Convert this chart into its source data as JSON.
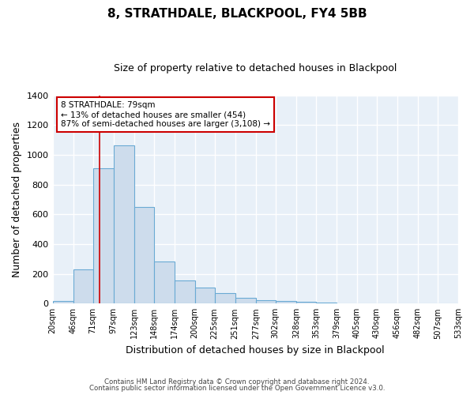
{
  "title": "8, STRATHDALE, BLACKPOOL, FY4 5BB",
  "subtitle": "Size of property relative to detached houses in Blackpool",
  "xlabel": "Distribution of detached houses by size in Blackpool",
  "ylabel": "Number of detached properties",
  "bar_values": [
    15,
    228,
    910,
    1065,
    648,
    285,
    158,
    107,
    70,
    40,
    25,
    18,
    10,
    5,
    2,
    0,
    0,
    0,
    0,
    0
  ],
  "bin_edges": [
    20,
    46,
    71,
    97,
    123,
    148,
    174,
    200,
    225,
    251,
    277,
    302,
    328,
    353,
    379,
    405,
    430,
    456,
    482,
    507,
    533
  ],
  "tick_labels": [
    "20sqm",
    "46sqm",
    "71sqm",
    "97sqm",
    "123sqm",
    "148sqm",
    "174sqm",
    "200sqm",
    "225sqm",
    "251sqm",
    "277sqm",
    "302sqm",
    "328sqm",
    "353sqm",
    "379sqm",
    "405sqm",
    "430sqm",
    "456sqm",
    "482sqm",
    "507sqm",
    "533sqm"
  ],
  "bar_color": "#cddcec",
  "bar_edge_color": "#6aaad4",
  "property_line_x": 79,
  "property_line_color": "#cc0000",
  "ylim": [
    0,
    1400
  ],
  "yticks": [
    0,
    200,
    400,
    600,
    800,
    1000,
    1200,
    1400
  ],
  "annotation_title": "8 STRATHDALE: 79sqm",
  "annotation_line1": "← 13% of detached houses are smaller (454)",
  "annotation_line2": "87% of semi-detached houses are larger (3,108) →",
  "annotation_box_color": "#ffffff",
  "annotation_box_edge": "#cc0000",
  "footer1": "Contains HM Land Registry data © Crown copyright and database right 2024.",
  "footer2": "Contains public sector information licensed under the Open Government Licence v3.0.",
  "background_color": "#ffffff",
  "plot_bg_color": "#e8f0f8",
  "grid_color": "#ffffff"
}
